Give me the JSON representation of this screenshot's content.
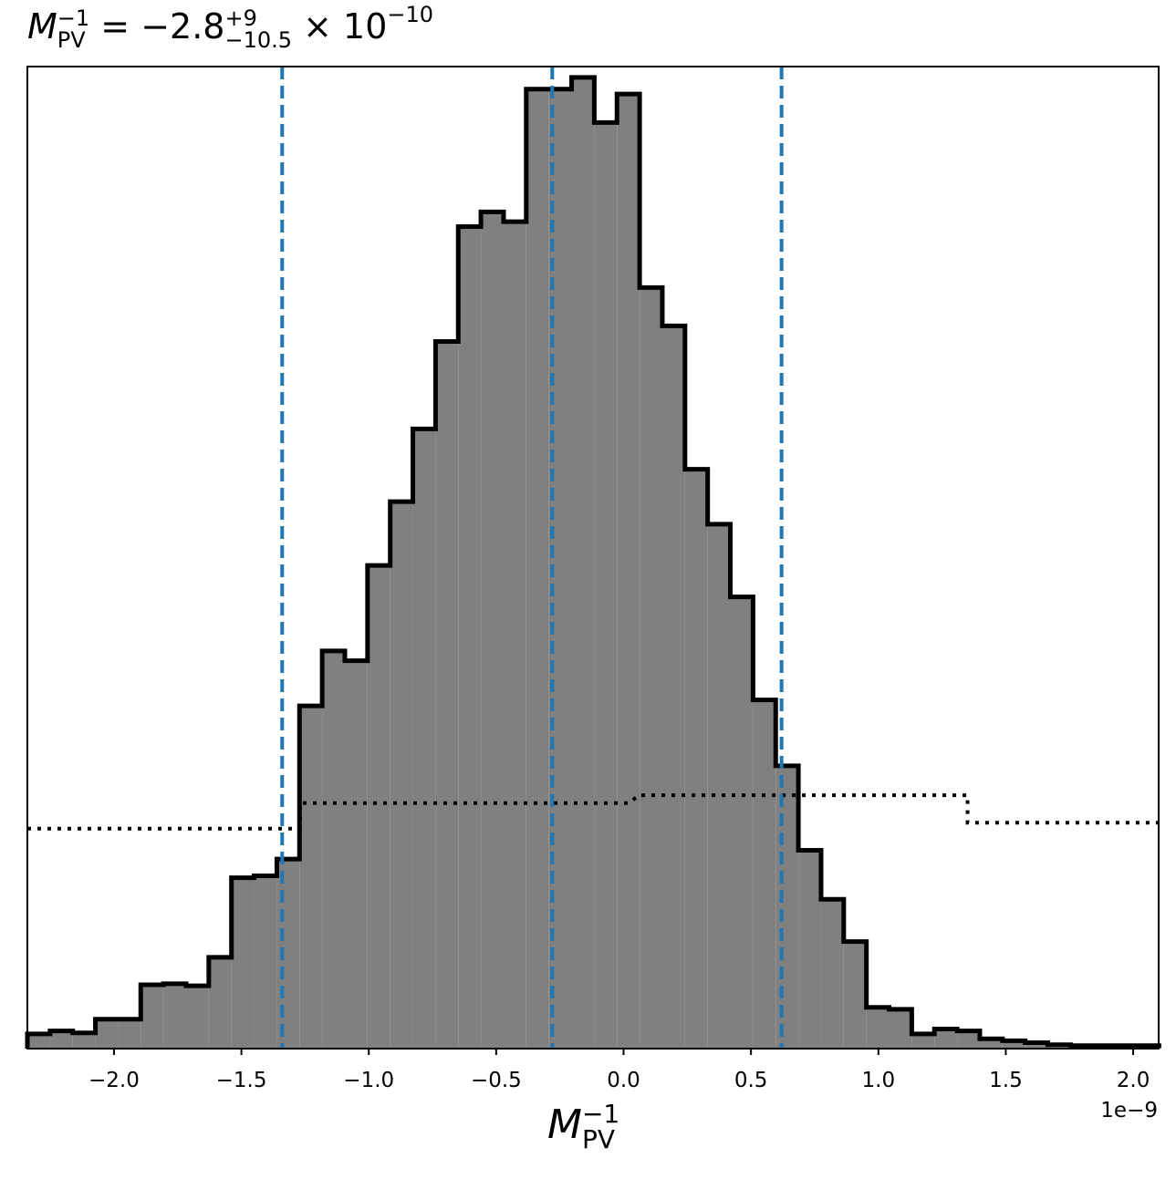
{
  "chart_data": {
    "type": "histogram",
    "title": {
      "symbol": "M",
      "sub": "PV",
      "sup": "−1",
      "equals": " = ",
      "central": "−2.8",
      "upper_err": "+9",
      "lower_err": "−10.5",
      "times": " × 10",
      "exponent": "−10"
    },
    "xlabel": {
      "symbol": "M",
      "sub": "PV",
      "sup": "−1"
    },
    "x_offset_text": "1e−9",
    "xlim": [
      -2.34,
      2.1
    ],
    "ylim": [
      0,
      1.0
    ],
    "x_ticks": [
      -2.0,
      -1.5,
      -1.0,
      -0.5,
      0.0,
      0.5,
      1.0,
      1.5,
      2.0
    ],
    "x_tick_labels": [
      "−2.0",
      "−1.5",
      "−1.0",
      "−0.5",
      "0.0",
      "0.5",
      "1.0",
      "1.5",
      "2.0"
    ],
    "y_ticks_shown": false,
    "bin_width": 0.089,
    "bin_edges_start": -2.34,
    "histogram_heights": [
      0.015,
      0.018,
      0.016,
      0.03,
      0.03,
      0.065,
      0.066,
      0.064,
      0.093,
      0.174,
      0.176,
      0.193,
      0.349,
      0.405,
      0.395,
      0.492,
      0.557,
      0.631,
      0.72,
      0.837,
      0.852,
      0.842,
      0.977,
      0.977,
      0.989,
      0.943,
      0.972,
      0.775,
      0.736,
      0.59,
      0.534,
      0.46,
      0.355,
      0.288,
      0.202,
      0.152,
      0.109,
      0.042,
      0.04,
      0.015,
      0.02,
      0.018,
      0.01,
      0.008,
      0.006,
      0.004,
      0.003,
      0.003,
      0.003,
      0.003
    ],
    "histogram_fill": "#808080",
    "histogram_edge": "#000000",
    "quantile_lines": {
      "values": [
        -1.34,
        -0.28,
        0.62
      ],
      "color": "#1f77b4",
      "style": "dashed"
    },
    "prior": {
      "style": "dotted",
      "color": "#000000",
      "x": [
        -2.34,
        -1.27,
        -1.27,
        0.02,
        0.06,
        1.35,
        1.35,
        2.1
      ],
      "y": [
        0.224,
        0.224,
        0.25,
        0.25,
        0.258,
        0.258,
        0.23,
        0.23
      ]
    }
  }
}
